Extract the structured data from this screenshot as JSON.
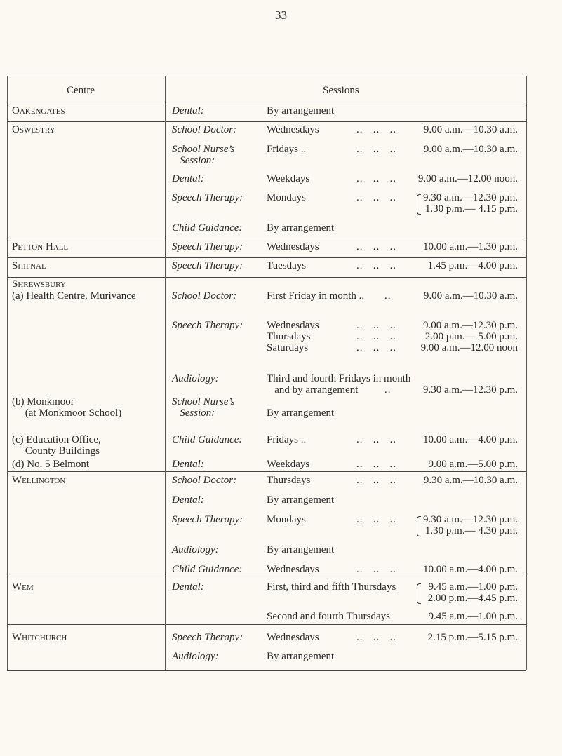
{
  "page_number": "33",
  "header": {
    "centre": "Centre",
    "sessions": "Sessions"
  },
  "lines": [
    {
      "c": "Oakengates",
      "cs": true,
      "s": "Dental:",
      "d": "By arrangement"
    },
    {
      "c": "Oswestry",
      "cs": true,
      "s": "School Doctor:",
      "d": "Wednesdays",
      "l": "..   ..   ..",
      "t": "9.00 a.m.—10.30 a.m."
    },
    {
      "s": "School Nurse’s",
      "d": "Fridays ..",
      "l": "..   ..   ..",
      "t": "9.00 a.m.—10.30 a.m."
    },
    {
      "s": "   Session:"
    },
    {
      "s": "Dental:",
      "d": "Weekdays",
      "l": "..   ..   ..",
      "t": "9.00 a.m.—12.00 noon."
    },
    {
      "s": "Speech Therapy:",
      "d": "Mondays",
      "l": "..   ..   ..",
      "t": "9.30 a.m.—12.30 p.m.",
      "brace": true
    },
    {
      "t": "1.30 p.m.— 4.15 p.m."
    },
    {
      "s": "Child Guidance:",
      "d": "By arrangement"
    },
    {
      "c": "Petton Hall",
      "cs": true,
      "s": "Speech Therapy:",
      "d": "Wednesdays",
      "l": "..   ..   ..",
      "t": "10.00 a.m.—1.30 p.m."
    },
    {
      "c": "Shifnal",
      "cs": true,
      "s": "Speech Therapy:",
      "d": "Tuesdays",
      "l": "..   ..   ..",
      "t": "1.45 p.m.—4.00 p.m."
    },
    {
      "c": "Shrewsbury",
      "cs": true
    },
    {
      "c": "(a) Health Centre, Murivance",
      "s": "School Doctor:",
      "d": "First Friday in month ..",
      "l": "..",
      "t": "9.00 a.m.—10.30 a.m."
    },
    {
      "s": "Speech Therapy:",
      "d": "Wednesdays",
      "l": "..   ..   ..",
      "t": "9.00 a.m.—12.30 p.m."
    },
    {
      "d": "Thursdays",
      "l": "..   ..   ..",
      "t": "2.00 p.m.— 5.00 p.m."
    },
    {
      "d": "Saturdays",
      "l": "..   ..   ..",
      "t": "9.00 a.m.—12.00 noon"
    },
    {
      "s": "Audiology:",
      "d": "Third and fourth Fridays in month"
    },
    {
      "d": "   and by arrangement",
      "l": "..",
      "t": "9.30 a.m.—12.30 p.m."
    },
    {
      "c": "(b) Monkmoor",
      "s": "School Nurse’s"
    },
    {
      "c": "     (at Monkmoor School)",
      "s": "   Session:",
      "d": "By arrangement"
    },
    {
      "c": "(c) Education Office,",
      "s": "Child Guidance:",
      "d": "Fridays ..",
      "l": "..   ..   ..",
      "t": "10.00 a.m.—4.00 p.m."
    },
    {
      "c": "     County Buildings"
    },
    {
      "c": "(d) No. 5 Belmont",
      "s": "Dental:",
      "d": "Weekdays",
      "l": "..   ..   ..",
      "t": "9.00 a.m.—5.00 p.m."
    },
    {
      "c": "Wellington",
      "cs": true,
      "s": "School Doctor:",
      "d": "Thursdays",
      "l": "..   ..   ..",
      "t": "9.30 a.m.—10.30 a.m."
    },
    {
      "s": "Dental:",
      "d": "By arrangement"
    },
    {
      "s": "Speech Therapy:",
      "d": "Mondays",
      "l": "..   ..   ..",
      "t": "9.30 a.m.—12.30 p.m.",
      "brace": true
    },
    {
      "t": "1.30 p.m.— 4.30 p.m."
    },
    {
      "s": "Audiology:",
      "d": "By arrangement"
    },
    {
      "s": "Child Guidance:",
      "d": "Wednesdays",
      "l": "..   ..   ..",
      "t": "10.00 a.m.—4.00 p.m."
    },
    {
      "c": "Wem",
      "cs": true,
      "s": "Dental:",
      "d": "First, third and fifth Thursdays",
      "t": "9.45 a.m.—1.00 p.m.",
      "brace": true
    },
    {
      "t": "2.00 p.m.—4.45 p.m."
    },
    {
      "d": "Second and fourth Thursdays",
      "t": "9.45 a.m.—1.00 p.m."
    },
    {
      "c": "Whitchurch",
      "cs": true,
      "s": "Speech Therapy:",
      "d": "Wednesdays",
      "l": "..   ..   ..",
      "t": "2.15 p.m.—5.15 p.m."
    },
    {
      "s": "Audiology:",
      "d": "By arrangement"
    }
  ]
}
